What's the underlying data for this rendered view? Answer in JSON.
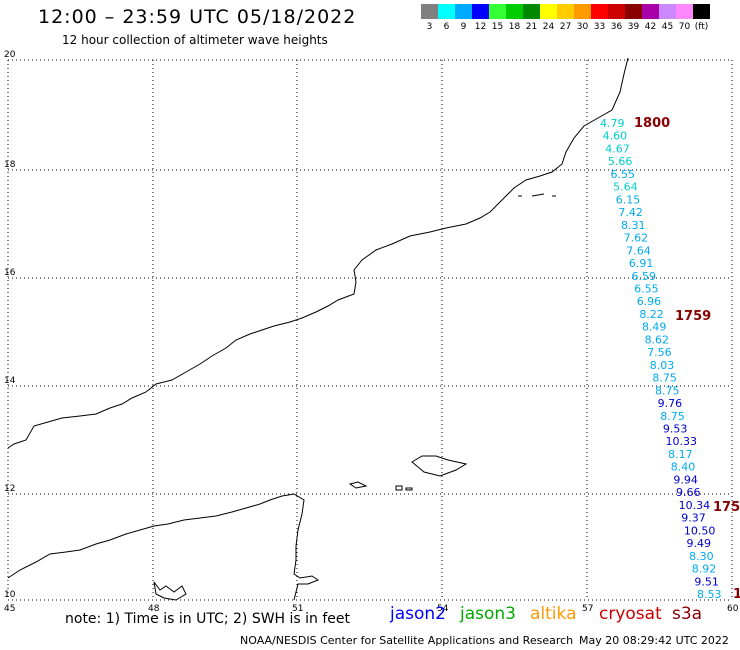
{
  "header": {
    "title": "12:00 – 23:59 UTC 05/18/2022",
    "subtitle": "12 hour collection of altimeter wave heights"
  },
  "scale": {
    "colors": [
      "#808080",
      "#00ffff",
      "#00aaff",
      "#0000ff",
      "#33ff33",
      "#00cc00",
      "#008800",
      "#ffff00",
      "#ffcc00",
      "#ff9900",
      "#ff0000",
      "#cc0000",
      "#880000",
      "#aa00aa",
      "#cc88ff",
      "#ff88ff",
      "#000000"
    ],
    "labels": [
      "3",
      "6",
      "9",
      "12",
      "15",
      "18",
      "21",
      "24",
      "27",
      "30",
      "33",
      "36",
      "39",
      "42",
      "45",
      "70",
      "(ft)"
    ]
  },
  "axes": {
    "x_ticks": [
      "45",
      "48",
      "51",
      "54",
      "57",
      "60"
    ],
    "y_ticks": [
      "20",
      "18",
      "16",
      "14",
      "12",
      "10"
    ]
  },
  "track": {
    "points": [
      {
        "v": "4.79",
        "c": "#00cccc"
      },
      {
        "v": "4.60",
        "c": "#00cccc"
      },
      {
        "v": "4.67",
        "c": "#00cccc"
      },
      {
        "v": "5.66",
        "c": "#00cccc"
      },
      {
        "v": "6.55",
        "c": "#00aaee"
      },
      {
        "v": "5.64",
        "c": "#00cccc"
      },
      {
        "v": "6.15",
        "c": "#00aaee"
      },
      {
        "v": "7.42",
        "c": "#00aaee"
      },
      {
        "v": "8.31",
        "c": "#00aaee"
      },
      {
        "v": "7.62",
        "c": "#00aaee"
      },
      {
        "v": "7.64",
        "c": "#00aaee"
      },
      {
        "v": "6.91",
        "c": "#00aaee"
      },
      {
        "v": "6.59",
        "c": "#00aaee"
      },
      {
        "v": "6.55",
        "c": "#00aaee"
      },
      {
        "v": "6.96",
        "c": "#00aaee"
      },
      {
        "v": "8.22",
        "c": "#00aaee"
      },
      {
        "v": "8.49",
        "c": "#00aaee"
      },
      {
        "v": "8.62",
        "c": "#00aaee"
      },
      {
        "v": "7.56",
        "c": "#00aaee"
      },
      {
        "v": "8.03",
        "c": "#00aaee"
      },
      {
        "v": "8.75",
        "c": "#00aaee"
      },
      {
        "v": "8.75",
        "c": "#00aaee"
      },
      {
        "v": "9.76",
        "c": "#0000cc"
      },
      {
        "v": "8.75",
        "c": "#00aaee"
      },
      {
        "v": "9.53",
        "c": "#0000cc"
      },
      {
        "v": "10.33",
        "c": "#0000cc"
      },
      {
        "v": "8.17",
        "c": "#00aaee"
      },
      {
        "v": "8.40",
        "c": "#00aaee"
      },
      {
        "v": "9.94",
        "c": "#0000cc"
      },
      {
        "v": "9.66",
        "c": "#0000cc"
      },
      {
        "v": "10.34",
        "c": "#0000cc"
      },
      {
        "v": "9.37",
        "c": "#0000cc"
      },
      {
        "v": "10.50",
        "c": "#0000cc"
      },
      {
        "v": "9.49",
        "c": "#0000cc"
      },
      {
        "v": "8.30",
        "c": "#00aaee"
      },
      {
        "v": "8.92",
        "c": "#00aaee"
      },
      {
        "v": "9.51",
        "c": "#0000cc"
      },
      {
        "v": "8.53",
        "c": "#00aaee"
      }
    ],
    "time_labels": [
      "1800",
      "1759",
      "175",
      "1"
    ],
    "time_color": "#880000"
  },
  "footer": {
    "note": "note:  1) Time is in UTC; 2) SWH is in feet",
    "satellites": [
      {
        "name": "jason2",
        "color": "#0000ff"
      },
      {
        "name": "jason3",
        "color": "#00aa00"
      },
      {
        "name": "altika",
        "color": "#ff9900"
      },
      {
        "name": "cryosat",
        "color": "#cc0000"
      },
      {
        "name": "s3a",
        "color": "#880000"
      }
    ],
    "credit": "NOAA/NESDIS Center for Satellite Applications and Research",
    "timestamp": "May 20 08:29:42 UTC 2022"
  }
}
